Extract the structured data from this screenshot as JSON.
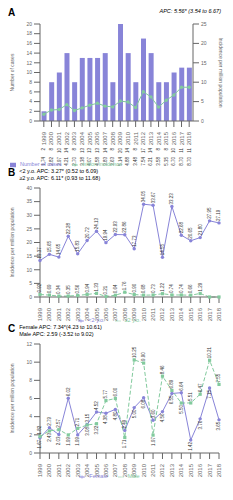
{
  "chart_data": [
    {
      "type": "bar",
      "title": "A",
      "annotations": [
        "APC: 5.56* (3.54 to 6.67)"
      ],
      "categories": [
        "1999",
        "2000",
        "2001",
        "2002",
        "2003",
        "2004",
        "2005",
        "2006",
        "2007",
        "2008",
        "2009",
        "2010",
        "2011",
        "2012",
        "2013",
        "2014",
        "2015",
        "2016",
        "2017",
        "2018"
      ],
      "series": [
        {
          "name": "Number of cases",
          "type": "bar",
          "data_labels": true,
          "values": [
            2,
            8,
            10,
            14,
            8,
            13,
            13,
            13,
            14,
            8,
            20,
            14,
            8,
            17,
            14,
            8,
            8,
            10,
            11,
            11
          ]
        },
        {
          "name": "million incidence",
          "type": "line",
          "axis": "y2",
          "marker": "circle",
          "line_style": "solid",
          "data_labels": true,
          "values": [
            1.74,
            2.82,
            2.97,
            4.21,
            2.7,
            3.38,
            4.07,
            4.58,
            3.83,
            3.63,
            5.14,
            4.88,
            3.48,
            7.54,
            6.21,
            3.58,
            5.35,
            6.7,
            8.7,
            8.7
          ],
          "value_labels": [
            "1.74",
            "2.82",
            "2.97",
            "4.21",
            "2.70",
            "3.38",
            "4.07",
            "4.58",
            "3.83",
            "3.63",
            "5.14",
            "4.88",
            "3.48",
            "7.54",
            "6.21",
            "3.58",
            "5.35",
            "6.70",
            "8.70",
            "8.70"
          ]
        }
      ],
      "ylabel": "Number of cases",
      "y2label": "Incidence per million population",
      "ylim": [
        0,
        20
      ],
      "yticks": [
        0,
        2,
        4,
        6,
        8,
        10,
        12,
        14,
        16,
        18,
        20
      ],
      "y2lim": [
        0,
        25
      ],
      "y2ticks": [
        0,
        5,
        10,
        15,
        20,
        25
      ],
      "grid": false,
      "legend": "lower left"
    },
    {
      "type": "line",
      "title": "B",
      "annotations": [
        "<2 y.o. APC: 3.27* (0.52 to 6.09)",
        "≥2 y.o. APC: 6.11* (0.93 to 11.68)"
      ],
      "categories": [
        "1999",
        "2000",
        "2001",
        "2002",
        "2003",
        "2004",
        "2005",
        "2006",
        "2007",
        "2008",
        "2009",
        "2010",
        "2011",
        "2012",
        "2013",
        "2014",
        "2015",
        "2016",
        "2017",
        "2018"
      ],
      "series": [
        {
          "name": "<2 y.o.",
          "marker": "circle",
          "line_style": "solid",
          "data_labels": true,
          "values": [
            13.37,
            15.65,
            14.65,
            22.28,
            15.83,
            20.72,
            24.13,
            19.94,
            22.93,
            22.86,
            17.73,
            34.05,
            33.67,
            14.55,
            33.23,
            22.68,
            20.65,
            21.8,
            27.95,
            27.19
          ],
          "value_labels": [
            "13.37",
            "15.65",
            "14.65",
            "22.28",
            "15.83",
            "20.72",
            "24.13",
            "19.94",
            "22.93",
            "22.86",
            "17.73",
            "34.05",
            "33.67",
            "14.55",
            "33.23",
            "22.68",
            "20.65",
            "21.80",
            "27.95",
            "27.19"
          ]
        },
        {
          "name": "≥2 y.o.",
          "marker": "square",
          "line_style": "dashed",
          "data_labels": true,
          "values": [
            0.92,
            0.69,
            0.34,
            0.35,
            0.56,
            0.94,
            1.33,
            0.21,
            0.64,
            1.76,
            0.9,
            0.68,
            0.73,
            1.22,
            0.74,
            0.74,
            0.66,
            1.29,
            0,
            0
          ],
          "value_labels": [
            "0.92",
            "0.69",
            "0.34",
            "0.35",
            "0.56",
            "0.94",
            "1.33",
            "0.21",
            "0.64",
            "1.76",
            "0.90",
            "0.68",
            "0.73",
            "1.22",
            "0.74",
            "0.74",
            "0.66",
            "1.29",
            null,
            null
          ]
        }
      ],
      "ylabel": "Incidence per million population",
      "ylim": [
        0,
        40
      ],
      "yticks": [
        0,
        5,
        10,
        15,
        20,
        25,
        30,
        35,
        40
      ],
      "grid": false,
      "legend": "lower center"
    },
    {
      "type": "line",
      "title": "C",
      "annotations": [
        "Female APC: 7.34*(4.23 to 10.61)",
        "Male APC: 2.59 (-3.52 to 9.02)"
      ],
      "categories": [
        "1999",
        "2000",
        "2001",
        "2002",
        "2003",
        "2004",
        "2005",
        "2006",
        "2007",
        "2008",
        "2009",
        "2010",
        "2011",
        "2012",
        "2013",
        "2014",
        "2015",
        "2016",
        "2017",
        "2018"
      ],
      "series": [
        {
          "name": "Female",
          "marker": "circle",
          "line_style": "solid",
          "data_labels": true,
          "values": [
            1.67,
            2.79,
            2.03,
            6.02,
            1.99,
            3.15,
            4.52,
            4.38,
            4.8,
            2.49,
            5.0,
            6.08,
            3.6,
            4.56,
            6.55,
            6.64,
            1.42,
            3.76,
            7.15,
            3.65
          ],
          "value_labels": [
            "1.67",
            "2.79",
            "2.03",
            "6.02",
            "1.99",
            "3.15",
            "4.52",
            "4.38",
            "4.80",
            "2.49",
            "5.00",
            "6.08",
            "3.60",
            "4.56",
            "6.55",
            "6.64",
            "1.42",
            "3.76",
            "7.15",
            "3.65"
          ]
        },
        {
          "name": "Male",
          "marker": "square",
          "line_style": "dashed",
          "data_labels": true,
          "values": [
            1.82,
            2.43,
            2.57,
            1.99,
            2.71,
            3.08,
            3.22,
            5.77,
            6.0,
            1.71,
            10.25,
            9.9,
            1.97,
            8.46,
            6.89,
            5.5,
            5.51,
            6.47,
            10.21,
            7.55
          ],
          "value_labels": [
            "1.82",
            "2.43",
            "2.57",
            "1.99",
            "2.71",
            "3.08",
            "3.22",
            "5.77",
            "6.00",
            "1.71",
            "10.25",
            "9.90",
            "1.97",
            "8.46",
            "6.89",
            "5.50",
            "5.51",
            "6.47",
            "10.21",
            "7.55"
          ]
        }
      ],
      "ylabel": "Incidence per million population",
      "ylim": [
        0,
        12
      ],
      "yticks": [
        0,
        2,
        4,
        6,
        8,
        10,
        12
      ],
      "grid": false,
      "legend": "lower center"
    }
  ]
}
